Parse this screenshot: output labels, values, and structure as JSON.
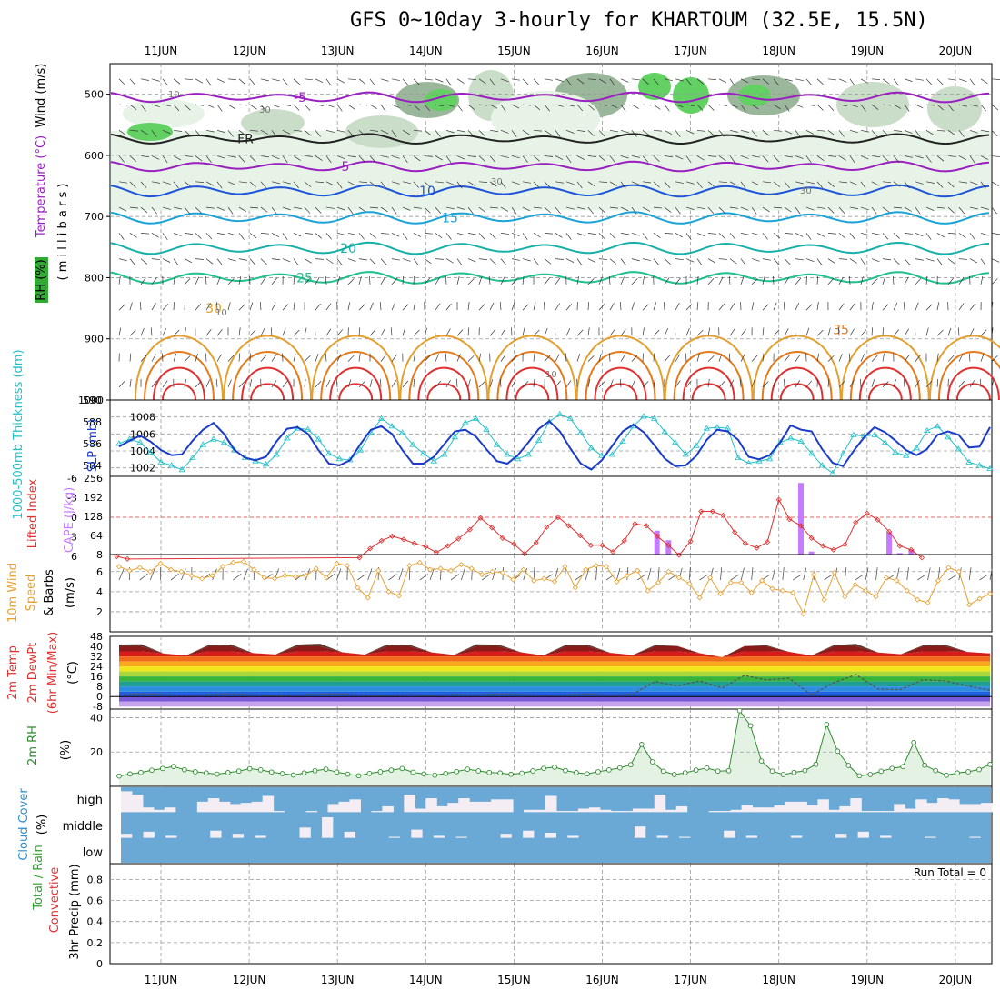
{
  "title": "GFS 0~10day 3-hourly for KHARTOUM (32.5E, 15.5N)",
  "colors": {
    "grid": "#9a9a9a",
    "rh_fill": [
      "#e6f3e6",
      "#c9ddc9",
      "#9bb79b",
      "#62d062"
    ],
    "temp_purple": "#9a1fc0",
    "temp_blue": "#1f55d8",
    "temp_cyan": "#1ba3d8",
    "temp_teal": "#16b0a8",
    "temp_green": "#1fbf8f",
    "temp_orange": "#e3a030",
    "temp_orange2": "#e47a1c",
    "temp_red": "#e03030",
    "slp": "#1a3cc8",
    "thickness": "#22c0c8",
    "cape": "#c77cff",
    "li": "#e03030",
    "wind10": "#e8a030",
    "rh2m": "#2e8b2e",
    "cloud": "#6aa9d6",
    "cloud_clear": "#f4eef4",
    "temp_band_colors": [
      "#5b3a2e",
      "#8b1a1a",
      "#d81c1c",
      "#f26a1c",
      "#f8a91e",
      "#f3e51b",
      "#a9d63a",
      "#38b43c",
      "#1f9f8f",
      "#2d8de0",
      "#1f5fe0",
      "#7a5ad8",
      "#c8a0f0"
    ]
  },
  "chart_data": [
    {
      "panel": "upper-air",
      "type": "contour",
      "ylabel_parts": [
        "RH (%)",
        "Temperature (°C)",
        "Wind (m/s)",
        "( m i l l i b a r s )"
      ],
      "y_ticks": [
        500,
        600,
        700,
        800,
        900,
        1000
      ],
      "ylim": [
        450,
        1000
      ],
      "x_top_labels": [
        "11JUN",
        "12JUN",
        "13JUN",
        "14JUN",
        "15JUN",
        "16JUN",
        "17JUN",
        "18JUN",
        "19JUN",
        "20JUN"
      ],
      "temperature_isotherms": [
        {
          "label": "-5",
          "level": 505
        },
        {
          "label": "FR",
          "level": 573
        },
        {
          "label": "5",
          "level": 618
        },
        {
          "label": "10",
          "level": 658
        },
        {
          "label": "15",
          "level": 702
        },
        {
          "label": "20",
          "level": 752
        },
        {
          "label": "25",
          "level": 800
        },
        {
          "label": "30",
          "level": 850
        },
        {
          "label": "35",
          "level": 885
        }
      ],
      "rh_labels": [
        "10",
        "30",
        "10",
        "30",
        "30",
        "10"
      ]
    },
    {
      "panel": "slp-thickness",
      "type": "line",
      "ylabel_left": "1000-500mb Thickness (dm)",
      "ylabel_right": "SLP (mb)",
      "left_ticks": [
        584,
        586,
        588,
        590
      ],
      "right_ticks": [
        1002,
        1004,
        1006,
        1008
      ],
      "thickness_dm": [
        586.0,
        586.4,
        586.1,
        585.2,
        584.3,
        584.0,
        583.6,
        584.7,
        585.9,
        586.4,
        586.1,
        585.4,
        584.7,
        584.4,
        584.1,
        585.0,
        586.5,
        587.4,
        587.3,
        586.4,
        585.1,
        584.6,
        584.5,
        585.4,
        587.0,
        588.3,
        587.6,
        587.0,
        585.9,
        585.1,
        584.4,
        585.0,
        586.6,
        587.9,
        588.3,
        587.3,
        585.9,
        585.0,
        584.6,
        585.0,
        586.3,
        588.0,
        588.7,
        588.3,
        587.0,
        585.6,
        584.9,
        585.0,
        586.2,
        587.6,
        588.5,
        588.3,
        587.1,
        586.1,
        585.0,
        585.8,
        587.4,
        587.5,
        587.4,
        584.7,
        584.2,
        584.4,
        584.6,
        586.1,
        586.5,
        586.2,
        585.1,
        584.0,
        583.3,
        585.1,
        586.8,
        586.7,
        586.8,
        586.1,
        585.2,
        584.9,
        585.6,
        587.2,
        587.6,
        586.6,
        585.5,
        584.3,
        584.0,
        583.7
      ],
      "slp_mb": [
        1004.5,
        1005.2,
        1005.8,
        1005.1,
        1004.1,
        1003.5,
        1003.6,
        1005.2,
        1006.5,
        1007.3,
        1006.0,
        1004.1,
        1003.2,
        1002.9,
        1003.3,
        1005.1,
        1006.6,
        1006.8,
        1006.0,
        1004.1,
        1002.5,
        1002.3,
        1002.9,
        1004.8,
        1006.5,
        1006.9,
        1006.0,
        1004.1,
        1002.5,
        1002.5,
        1003.3,
        1004.8,
        1006.3,
        1006.5,
        1005.7,
        1004.2,
        1002.8,
        1002.5,
        1003.5,
        1005.0,
        1006.6,
        1007.5,
        1006.3,
        1004.3,
        1002.5,
        1001.8,
        1002.9,
        1004.6,
        1006.3,
        1007.1,
        1006.2,
        1004.7,
        1003.1,
        1002.2,
        1002.3,
        1003.4,
        1005.3,
        1006.5,
        1006.3,
        1005.3,
        1003.3,
        1003.0,
        1003.5,
        1005.0,
        1007.0,
        1006.5,
        1006.3,
        1004.2,
        1002.6,
        1002.2,
        1004.0,
        1005.6,
        1006.8,
        1006.2,
        1005.2,
        1004.1,
        1003.5,
        1004.2,
        1005.9,
        1006.3,
        1005.9,
        1004.4,
        1004.5,
        1006.8
      ]
    },
    {
      "panel": "cape-li",
      "type": "bar+line",
      "ylabel_left": "Lifted Index",
      "ylabel_right": "CAPE (J/kg)",
      "li_ticks": [
        -6,
        -3,
        0,
        3,
        6
      ],
      "cape_ticks": [
        0,
        64,
        128,
        192,
        256
      ],
      "cape_bars": [
        {
          "day": 6.12,
          "value": 80
        },
        {
          "day": 6.25,
          "value": 48
        },
        {
          "day": 7.75,
          "value": 240
        },
        {
          "day": 7.87,
          "value": 10
        },
        {
          "day": 8.75,
          "value": 75
        },
        {
          "day": 8.87,
          "value": 5
        },
        {
          "day": 9.0,
          "value": 18
        }
      ],
      "li_points": [
        {
          "day": 0.0,
          "value": 6.0
        },
        {
          "day": 0.12,
          "value": 6.4
        },
        {
          "day": 2.75,
          "value": 6.2
        },
        {
          "day": 2.87,
          "value": 4.8
        },
        {
          "day": 3.0,
          "value": 3.6
        },
        {
          "day": 3.12,
          "value": 2.9
        },
        {
          "day": 3.25,
          "value": 3.4
        },
        {
          "day": 3.37,
          "value": 4.0
        },
        {
          "day": 3.5,
          "value": 4.5
        },
        {
          "day": 3.62,
          "value": 5.4
        },
        {
          "day": 3.75,
          "value": 4.4
        },
        {
          "day": 3.87,
          "value": 3.3
        },
        {
          "day": 4.0,
          "value": 1.9
        },
        {
          "day": 4.12,
          "value": 0.1
        },
        {
          "day": 4.25,
          "value": 1.6
        },
        {
          "day": 4.37,
          "value": 3.2
        },
        {
          "day": 4.5,
          "value": 4.1
        },
        {
          "day": 4.62,
          "value": 5.6
        },
        {
          "day": 4.75,
          "value": 3.9
        },
        {
          "day": 4.87,
          "value": 1.5
        },
        {
          "day": 5.0,
          "value": 0.0
        },
        {
          "day": 5.12,
          "value": 1.3
        },
        {
          "day": 5.25,
          "value": 2.8
        },
        {
          "day": 5.37,
          "value": 4.3
        },
        {
          "day": 5.5,
          "value": 4.3
        },
        {
          "day": 5.62,
          "value": 5.3
        },
        {
          "day": 5.75,
          "value": 3.6
        },
        {
          "day": 5.87,
          "value": 1.0
        },
        {
          "day": 6.0,
          "value": 1.3
        },
        {
          "day": 6.12,
          "value": 2.9
        },
        {
          "day": 6.25,
          "value": 4.3
        },
        {
          "day": 6.37,
          "value": 5.8
        },
        {
          "day": 6.5,
          "value": 3.7
        },
        {
          "day": 6.62,
          "value": -0.9
        },
        {
          "day": 6.75,
          "value": -0.9
        },
        {
          "day": 6.87,
          "value": -0.3
        },
        {
          "day": 7.0,
          "value": 2.3
        },
        {
          "day": 7.12,
          "value": 4.0
        },
        {
          "day": 7.25,
          "value": 4.7
        },
        {
          "day": 7.37,
          "value": 3.8
        },
        {
          "day": 7.5,
          "value": -2.7
        },
        {
          "day": 7.62,
          "value": 0.3
        },
        {
          "day": 7.75,
          "value": 1.3
        },
        {
          "day": 7.87,
          "value": 3.2
        },
        {
          "day": 8.0,
          "value": 4.4
        },
        {
          "day": 8.12,
          "value": 5.0
        },
        {
          "day": 8.25,
          "value": 4.2
        },
        {
          "day": 8.37,
          "value": 0.8
        },
        {
          "day": 8.5,
          "value": -0.6
        },
        {
          "day": 8.62,
          "value": 0.4
        },
        {
          "day": 8.75,
          "value": 2.2
        },
        {
          "day": 8.87,
          "value": 4.4
        },
        {
          "day": 9.0,
          "value": 5.0
        },
        {
          "day": 9.12,
          "value": 6.2
        }
      ]
    },
    {
      "panel": "wind10m",
      "type": "line",
      "ylabel": "10m Wind Speed & Barbs (m/s)",
      "y_ticks": [
        2,
        4,
        6
      ],
      "ylim": [
        0,
        7.7
      ],
      "values": [
        6.5,
        6.1,
        6.4,
        6.0,
        6.8,
        6.2,
        6.0,
        5.6,
        5.3,
        5.6,
        6.5,
        6.9,
        7.0,
        6.2,
        5.4,
        5.3,
        5.6,
        5.5,
        5.6,
        6.3,
        5.4,
        6.8,
        6.6,
        4.4,
        3.4,
        6.1,
        4.0,
        3.6,
        6.6,
        6.9,
        6.2,
        6.3,
        6.1,
        6.7,
        6.3,
        5.7,
        6.0,
        5.9,
        5.2,
        6.2,
        5.1,
        5.3,
        5.0,
        6.5,
        4.4,
        6.2,
        6.6,
        6.5,
        5.0,
        5.6,
        6.1,
        4.1,
        4.9,
        6.0,
        5.4,
        4.8,
        3.4,
        5.4,
        3.8,
        4.9,
        4.9,
        3.9,
        5.1,
        4.3,
        4.1,
        3.9,
        1.8,
        5.7,
        3.2,
        5.9,
        3.5,
        4.7,
        4.1,
        3.5,
        5.4,
        5.1,
        4.1,
        3.2,
        2.9,
        5.1,
        6.4,
        6.0,
        2.7,
        3.3,
        3.8
      ]
    },
    {
      "panel": "temp2m",
      "type": "area",
      "ylabel": "2m Temp 2m DewPt (6hr Min/Max) (°C)",
      "y_ticks": [
        -8,
        0,
        8,
        16,
        24,
        32,
        40,
        48
      ],
      "ylim": [
        -10,
        48
      ],
      "temp_max_c": [
        41.5,
        41.7,
        34.3,
        32.8,
        41.0,
        41.6,
        34.7,
        33.6,
        41.5,
        42.1,
        35.3,
        33.5,
        41.5,
        41.3,
        35.2,
        33.2,
        41.7,
        41.4,
        35.3,
        32.8,
        41.2,
        41.3,
        34.9,
        33.1,
        41.0,
        40.3,
        34.6,
        31.4,
        40.2,
        40.8,
        35.7,
        32.7,
        40.9,
        42.0,
        35.1,
        33.8,
        40.8,
        41.2,
        35.6,
        34.4
      ],
      "dewpoint_c": [
        1.0,
        2.5,
        1.6,
        0.9,
        1.5,
        2.1,
        1.4,
        0.6,
        1.2,
        2.1,
        2.0,
        1.0,
        0.6,
        1.6,
        0.5,
        1.8,
        1.2,
        2.2,
        1.6,
        0.9,
        1.3,
        2.2,
        0.8,
        2.0,
        12.0,
        8.5,
        12.5,
        6.8,
        16.8,
        13.3,
        14.6,
        1.3,
        11.0,
        17.5,
        5.9,
        5.6,
        13.4,
        12.5,
        8.5,
        5.0
      ]
    },
    {
      "panel": "rh2m",
      "type": "area",
      "ylabel": "2m RH (%)",
      "y_ticks": [
        20,
        40
      ],
      "ylim": [
        0,
        45
      ],
      "values": [
        6.0,
        7.2,
        8.1,
        9.4,
        10.4,
        11.6,
        9.7,
        8.5,
        7.8,
        7.1,
        8.0,
        8.9,
        10.3,
        9.6,
        8.3,
        7.4,
        6.6,
        7.8,
        9.1,
        10.0,
        8.3,
        7.1,
        6.2,
        7.5,
        8.5,
        9.5,
        10.4,
        8.2,
        7.2,
        6.5,
        7.5,
        8.6,
        10.0,
        9.0,
        8.1,
        7.8,
        7.0,
        7.7,
        9.0,
        10.5,
        11.2,
        9.2,
        8.0,
        7.3,
        8.5,
        9.6,
        10.8,
        12.6,
        24.4,
        14.3,
        8.8,
        6.9,
        7.9,
        9.5,
        10.7,
        8.9,
        9.1,
        44.1,
        35.3,
        14.8,
        8.9,
        6.9,
        8.1,
        9.2,
        12.8,
        36.0,
        20.5,
        12.2,
        6.2,
        6.9,
        8.8,
        10.5,
        11.5,
        25.5,
        12.3,
        9.2,
        6.5,
        7.8,
        8.5,
        9.8,
        12.8
      ]
    },
    {
      "panel": "cloud-cover",
      "type": "bar",
      "ylabel": "Cloud Cover (%)",
      "level_labels": [
        "high",
        "middle",
        "low"
      ],
      "high_cover_frac": [
        0.1,
        0.25,
        0.8,
        0.9,
        0.8,
        1,
        1,
        0.55,
        0.4,
        0.55,
        0.65,
        0.6,
        0.55,
        0.3,
        0.95,
        1,
        1,
        0.95,
        1,
        0.65,
        0.55,
        0.45,
        1,
        0.95,
        0.75,
        1,
        0.25,
        0.85,
        0.4,
        0.75,
        0.6,
        0.4,
        0.55,
        0.55,
        0.45,
        0.45,
        1,
        0.9,
        0.9,
        0.3,
        0.95,
        0.95,
        0.85,
        0.8,
        0.9,
        0.95,
        0.95,
        0.85,
        0.85,
        0.25,
        0.9,
        0.75,
        1,
        1,
        0.95,
        0.95,
        0.9,
        0.7,
        0.8,
        0.8,
        0.7,
        0.55,
        0.55,
        0.7,
        0.45,
        0.9,
        0.75,
        0.4,
        0.95,
        0.95,
        0.95,
        0.65,
        0.85,
        0.45,
        0.6,
        0.4,
        0.45,
        0.65,
        0.65,
        0.6
      ],
      "middle_cover_frac": [
        0.2,
        0.3,
        0.1,
        0,
        0.35,
        0.2,
        0.1,
        0,
        0.5,
        1,
        0.3,
        0,
        0.05,
        0.4,
        0.1,
        0.05,
        0,
        0.2,
        0.35,
        0.25,
        0.1,
        0,
        0,
        0.55,
        0.1,
        0.05,
        0,
        0.35,
        0.1,
        0,
        0.1,
        0,
        0.2,
        0.3,
        0.1,
        0,
        0.05,
        0,
        0.05
      ]
    },
    {
      "panel": "precip",
      "type": "bar",
      "ylabel_parts": [
        "Total / Rain",
        "Convective",
        "3hr Precip (mm)"
      ],
      "y_ticks": [
        0,
        0.2,
        0.4,
        0.6,
        0.8
      ],
      "ylim": [
        0,
        0.95
      ],
      "values": [],
      "run_total_label": "Run Total = 0",
      "x_bottom_labels": [
        "11JUN",
        "12JUN",
        "13JUN",
        "14JUN",
        "15JUN",
        "16JUN",
        "17JUN",
        "18JUN",
        "19JUN",
        "20JUN"
      ]
    }
  ]
}
